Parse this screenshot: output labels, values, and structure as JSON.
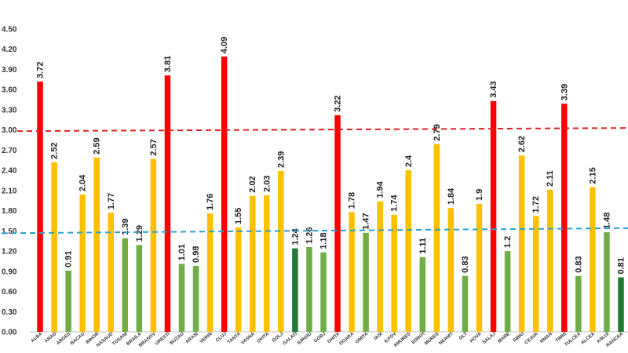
{
  "chart_data": {
    "type": "bar",
    "title": "",
    "xlabel": "",
    "ylabel": "",
    "ylim": [
      0,
      4.5
    ],
    "yticks": [
      "0.00",
      "0.30",
      "0.60",
      "0.90",
      "1.20",
      "1.50",
      "1.80",
      "2.10",
      "2.40",
      "2.70",
      "3.00",
      "3.30",
      "3.60",
      "3.90",
      "4.20",
      "4.50"
    ],
    "categories": [
      "ALBA",
      "ARAD",
      "ARGES",
      "BACAU",
      "BIHOR",
      "BISTRITA NASAUD",
      "BOTOSANI",
      "BRAILA",
      "BRASOV",
      "BUCURESTI",
      "BUZAU",
      "CALARASI",
      "CARAS SEVERIN",
      "CLUJ",
      "CONSTANTA",
      "COVASNA",
      "DAMBOVITA",
      "DOLJ",
      "GALATI",
      "GIURGIU",
      "GORJ",
      "HARGHITA",
      "HUNEDOARA",
      "IALOMITA",
      "IASI",
      "ILFOV",
      "MARAMURES",
      "MEHEDINTI",
      "MURES",
      "NEAMT",
      "OLT",
      "PRAHOVA",
      "SALAJ",
      "SATU MARE",
      "SIBIU",
      "SUCEAVA",
      "TELEORMAN",
      "TIMIS",
      "TULCEA",
      "VALCEA",
      "VASLUI",
      "VRANCEA"
    ],
    "display_labels": [
      "ALBA",
      "ARAD",
      "ARGES",
      "BACAU",
      "BIHOR",
      "NASAUD",
      "TOSANI",
      "BRAILA",
      "BRASOV",
      "URESTI",
      "BUZAU",
      "ARASI",
      "VERIN",
      "CLUJ",
      "TANTA",
      "VASNA",
      "OVITA",
      "DOLJ",
      "GALATI",
      "IURGIU",
      "GORJ",
      "GHITA",
      "DOARA",
      "OMITA",
      "IASI",
      "ILFOV",
      "AMURES",
      "EDINTI",
      "MURES",
      "NEAMT",
      "OLT",
      "HOVA",
      "SALAJ",
      "MARE",
      "SIBIU",
      "CEAVA",
      "RMAN",
      "TIMIS",
      "TULCEA",
      "ALCEA",
      "ASLUI",
      "RANCEA"
    ],
    "values": [
      3.72,
      2.52,
      0.91,
      2.04,
      2.59,
      1.77,
      1.39,
      1.29,
      2.57,
      3.81,
      1.01,
      0.98,
      1.76,
      4.09,
      1.55,
      2.02,
      2.03,
      2.39,
      1.24,
      1.26,
      1.18,
      3.22,
      1.78,
      1.47,
      1.94,
      1.74,
      2.4,
      1.11,
      2.79,
      1.84,
      0.83,
      1.9,
      3.43,
      1.2,
      2.62,
      1.72,
      2.11,
      3.39,
      0.83,
      2.15,
      1.48,
      0.81
    ],
    "value_labels": [
      "3.72",
      "2.52",
      "0.91",
      "2.04",
      "2.59",
      "1.77",
      "1.39",
      "1.29",
      "2.57",
      "3.81",
      "1.01",
      "0.98",
      "1.76",
      "4.09",
      "1.55",
      "2.02",
      "2.03",
      "2.39",
      "1.24",
      "1.26",
      "1.18",
      "3.22",
      "1.78",
      "1.47",
      "1.94",
      "1.74",
      "2.4",
      "1.11",
      "2.79",
      "1.84",
      "0.83",
      "1.9",
      "3.43",
      "1.2",
      "2.62",
      "1.72",
      "2.11",
      "3.39",
      "0.83",
      "2.15",
      "1.48",
      "0.81"
    ],
    "thresholds": [
      {
        "name": "high",
        "value": 3.0,
        "color": "#e02020"
      },
      {
        "name": "low",
        "value": 1.5,
        "color": "#2aa0d0"
      }
    ],
    "colors": {
      "high": "#ff0000",
      "mid": "#ffc000",
      "low": "#70ad47",
      "dark_low": "#1e7a34",
      "grid": "#cccccc"
    },
    "dark_bars": [
      18,
      41
    ],
    "grid": false,
    "legend": "none"
  }
}
